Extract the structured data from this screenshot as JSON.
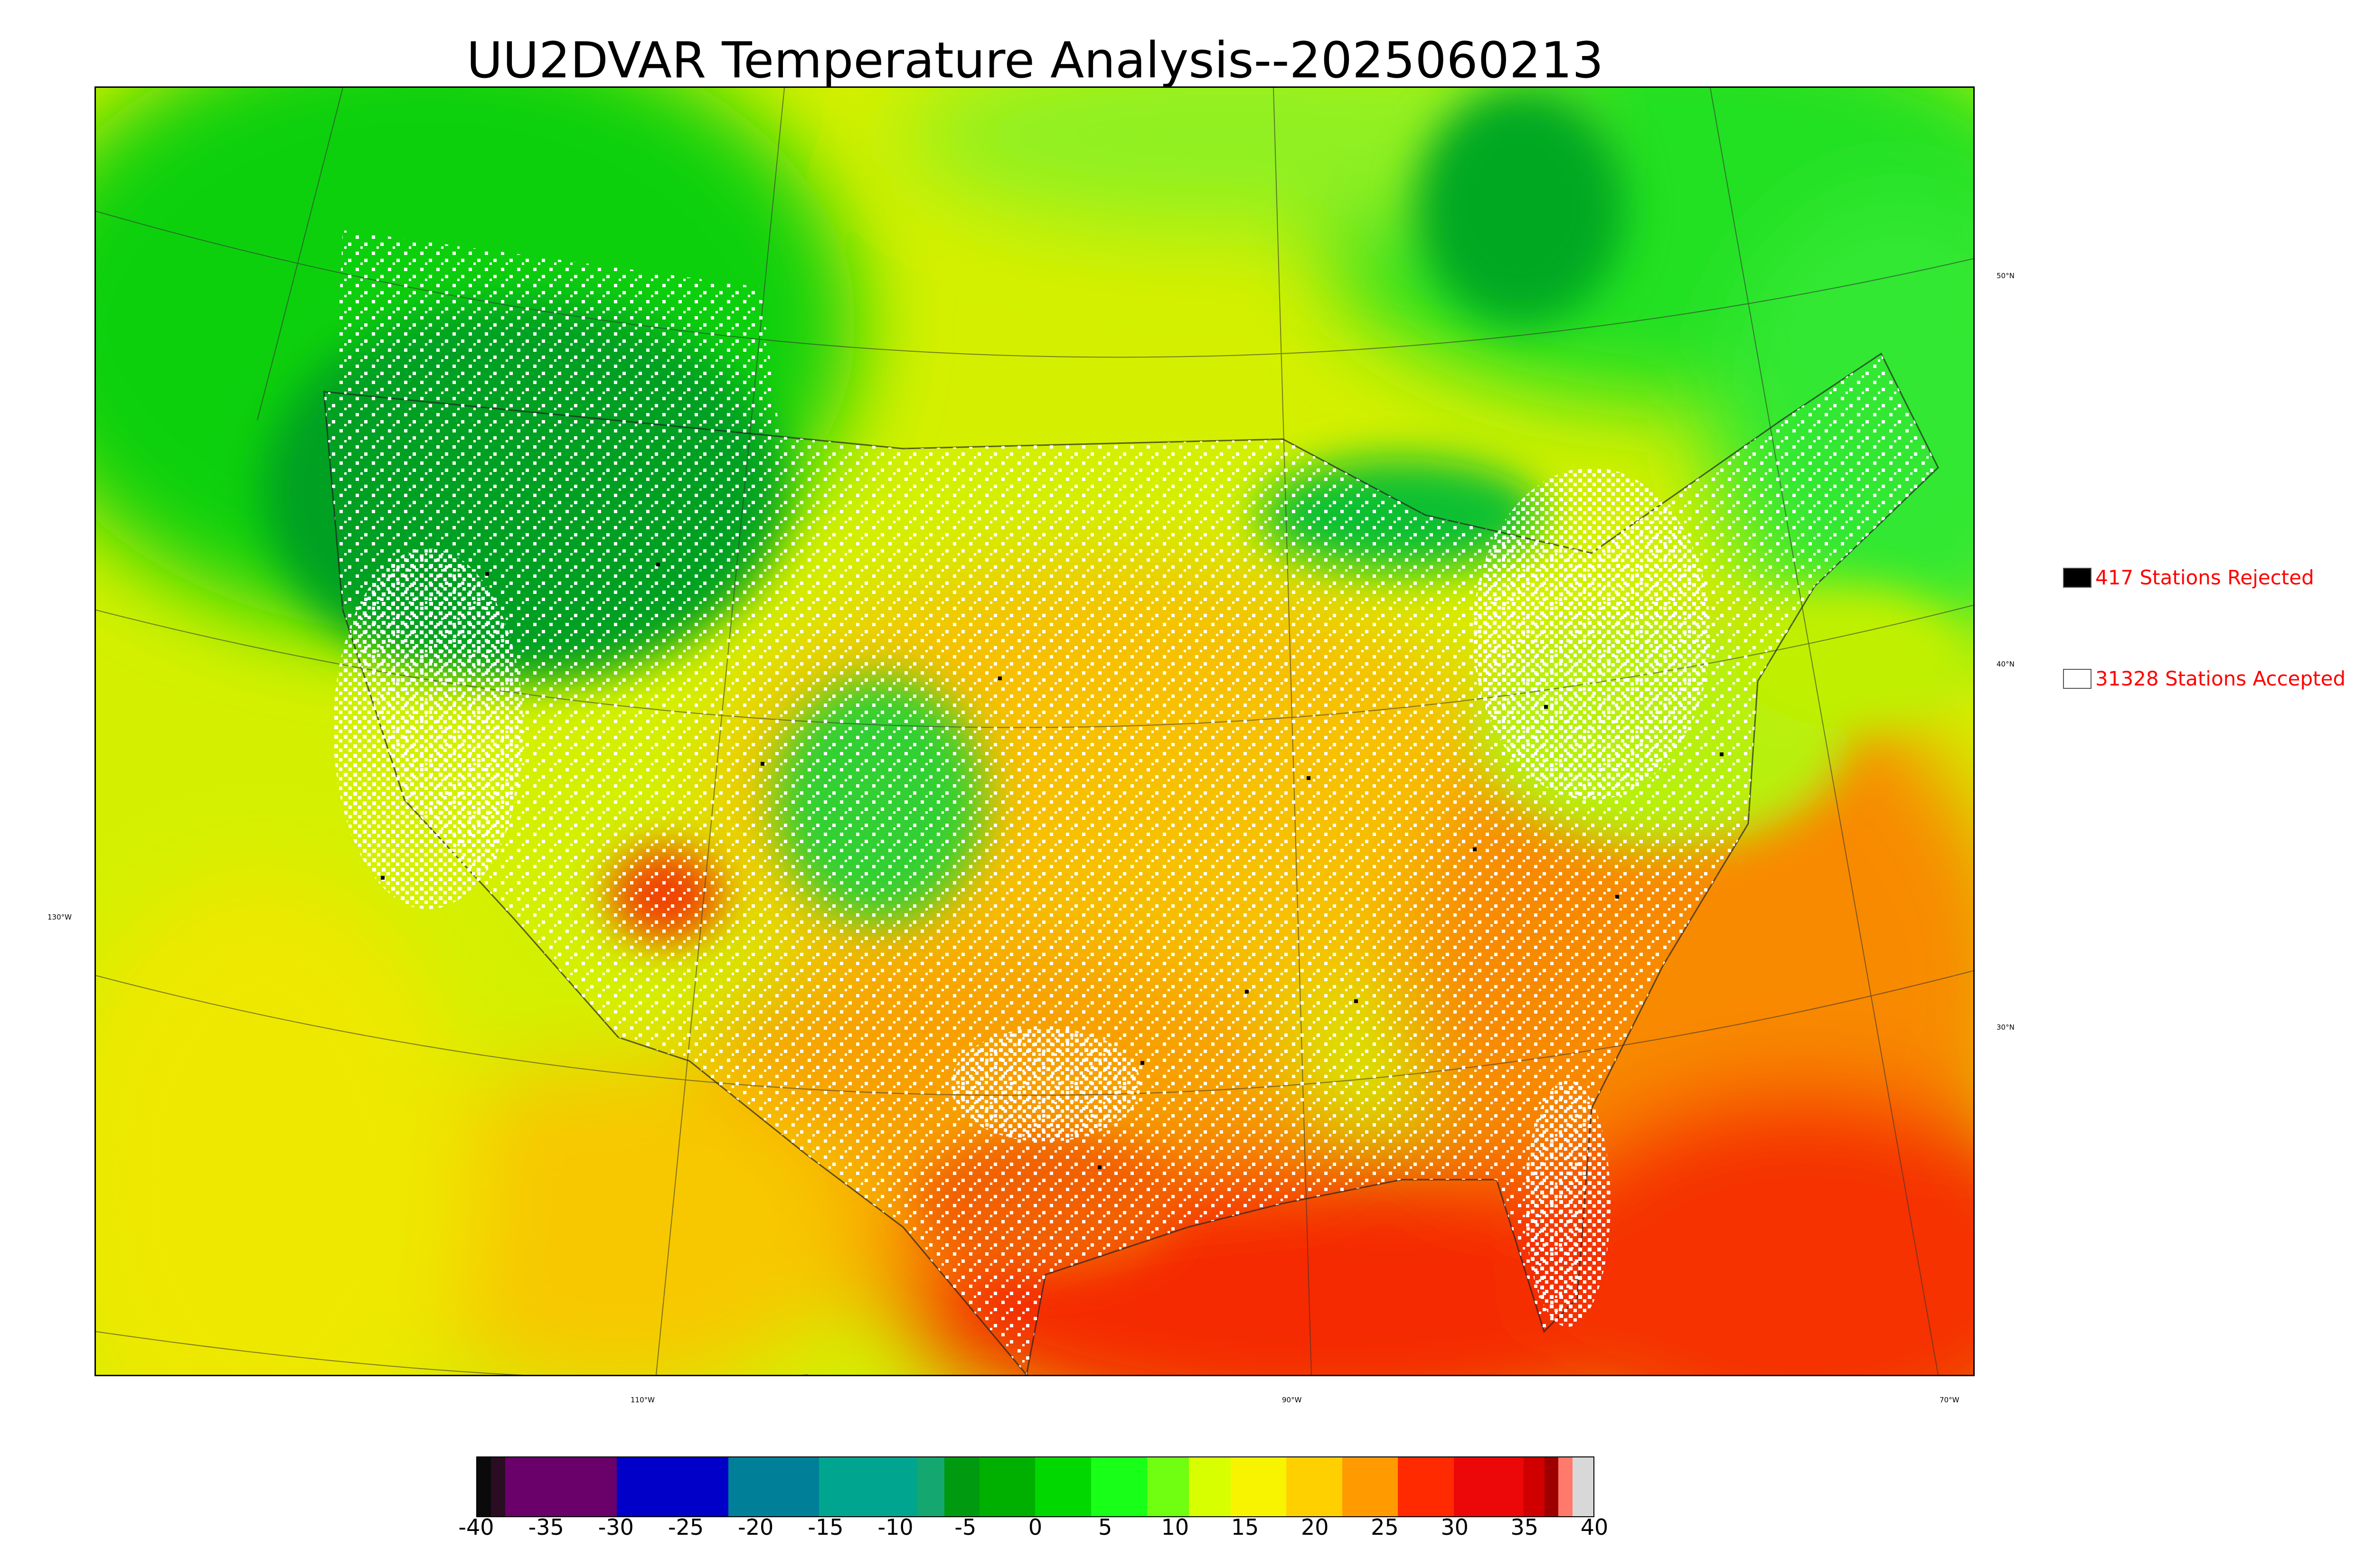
{
  "title": "UU2DVAR Temperature Analysis--2025060213",
  "map": {
    "projection_graticule": {
      "longitude_labels": [
        "130°W",
        "110°W",
        "90°W",
        "70°W"
      ],
      "latitude_labels": [
        "50°N",
        "40°N",
        "30°N"
      ]
    },
    "field": "temperature",
    "colors": {
      "cold_green": "#008a00",
      "green": "#10e010",
      "yellow_green": "#ccf000",
      "yellow": "#f7e600",
      "orange": "#f7a000",
      "red": "#f52000",
      "station_accepted": "#ffffff",
      "station_rejected": "#000000"
    }
  },
  "legend": {
    "rejected": {
      "label": "417 Stations Rejected",
      "color": "#000000"
    },
    "accepted": {
      "label": "31328 Stations Accepted",
      "color": "#ffffff"
    }
  },
  "colorbar": {
    "ticks": [
      "-40",
      "-35",
      "-30",
      "-25",
      "-20",
      "-15",
      "-10",
      "-5",
      "0",
      "5",
      "10",
      "15",
      "20",
      "25",
      "30",
      "35",
      "40"
    ],
    "range": [
      -40,
      40
    ],
    "segments": [
      {
        "from": -40,
        "to": -39,
        "color": "#0a0a0a"
      },
      {
        "from": -39,
        "to": -38,
        "color": "#2a0d22"
      },
      {
        "from": -38,
        "to": -30,
        "color": "#6a006a"
      },
      {
        "from": -30,
        "to": -22,
        "color": "#0000c8"
      },
      {
        "from": -22,
        "to": -15.5,
        "color": "#007f99"
      },
      {
        "from": -15.5,
        "to": -8.5,
        "color": "#00a590"
      },
      {
        "from": -8.5,
        "to": -6.5,
        "color": "#14a870"
      },
      {
        "from": -6.5,
        "to": -4,
        "color": "#009a10"
      },
      {
        "from": -4,
        "to": 0,
        "color": "#00b000"
      },
      {
        "from": 0,
        "to": 4,
        "color": "#00d800"
      },
      {
        "from": 4,
        "to": 8,
        "color": "#18ff18"
      },
      {
        "from": 8,
        "to": 11,
        "color": "#70ff10"
      },
      {
        "from": 11,
        "to": 14,
        "color": "#d8ff00"
      },
      {
        "from": 14,
        "to": 18,
        "color": "#f8f400"
      },
      {
        "from": 18,
        "to": 22,
        "color": "#ffd000"
      },
      {
        "from": 22,
        "to": 26,
        "color": "#ff9a00"
      },
      {
        "from": 26,
        "to": 30,
        "color": "#ff2a00"
      },
      {
        "from": 30,
        "to": 35,
        "color": "#ec0808"
      },
      {
        "from": 35,
        "to": 36.5,
        "color": "#d00000"
      },
      {
        "from": 36.5,
        "to": 37.5,
        "color": "#9e0000"
      },
      {
        "from": 37.5,
        "to": 38.5,
        "color": "#ff7a6a"
      },
      {
        "from": 38.5,
        "to": 40,
        "color": "#d8d8d8"
      }
    ]
  }
}
